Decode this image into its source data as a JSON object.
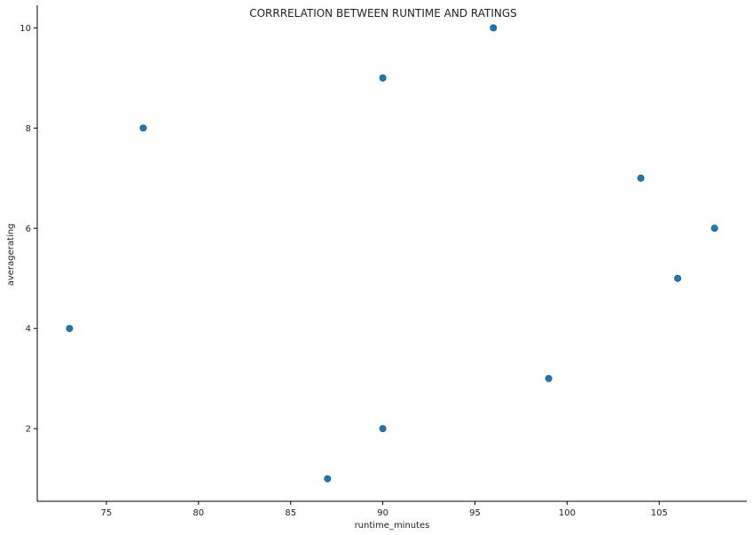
{
  "chart_data": {
    "type": "scatter",
    "title": "CORRRELATION BETWEEN RUNTIME AND RATINGS",
    "xlabel": "runtime_minutes",
    "ylabel": "averagerating",
    "xlim": [
      71.25,
      109.75
    ],
    "ylim": [
      0.55,
      10.45
    ],
    "x_ticks": [
      75,
      80,
      85,
      90,
      95,
      100,
      105
    ],
    "y_ticks": [
      2,
      4,
      6,
      8,
      10
    ],
    "grid": false,
    "point_color": "#1f77b4",
    "points": [
      {
        "x": 73,
        "y": 4
      },
      {
        "x": 77,
        "y": 8
      },
      {
        "x": 87,
        "y": 1
      },
      {
        "x": 90,
        "y": 2
      },
      {
        "x": 90,
        "y": 9
      },
      {
        "x": 96,
        "y": 10
      },
      {
        "x": 99,
        "y": 3
      },
      {
        "x": 104,
        "y": 7
      },
      {
        "x": 106,
        "y": 5
      },
      {
        "x": 108,
        "y": 6
      }
    ]
  }
}
